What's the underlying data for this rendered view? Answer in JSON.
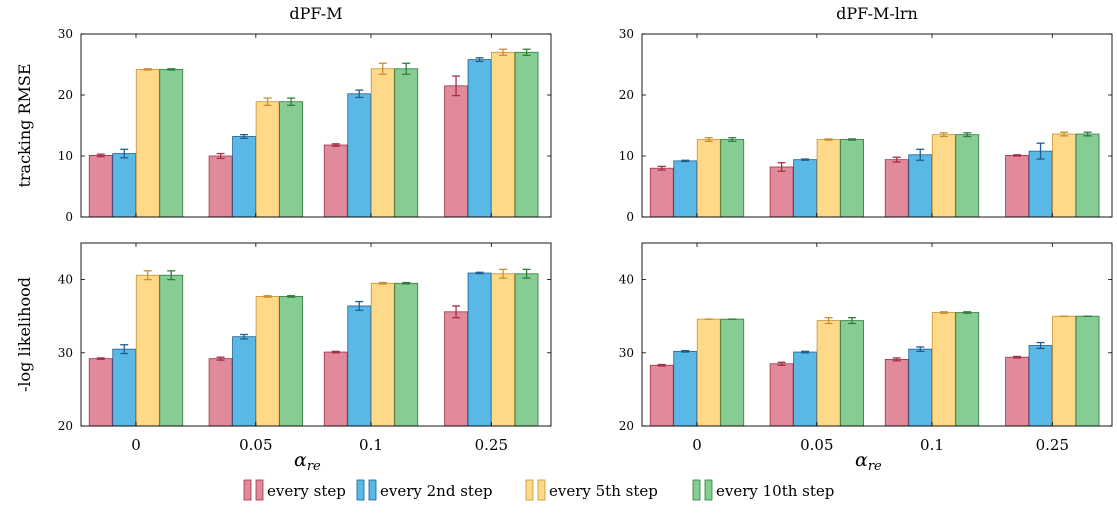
{
  "legend": [
    {
      "label": "every step",
      "fill": "#e08a9b",
      "stroke": "#a63046"
    },
    {
      "label": "every 2nd step",
      "fill": "#5ab8e6",
      "stroke": "#1f5f8f"
    },
    {
      "label": "every 5th step",
      "fill": "#ffd98a",
      "stroke": "#c7902f"
    },
    {
      "label": "every 10th step",
      "fill": "#86cc93",
      "stroke": "#2f7d3f"
    }
  ],
  "columns": [
    {
      "title": "dPF-M"
    },
    {
      "title": "dPF-M-lrn"
    }
  ],
  "x_axis_label": "α",
  "x_axis_label_sub": "re",
  "chart_data": [
    {
      "type": "bar",
      "panel": "top-left",
      "column": 0,
      "row": 0,
      "title": "dPF-M",
      "ylabel": "tracking RMSE",
      "xlabel": "",
      "categories": [
        "0",
        "0.05",
        "0.1",
        "0.25"
      ],
      "ylim": [
        0,
        30
      ],
      "yticks": [
        0,
        10,
        20,
        30
      ],
      "grid": false,
      "series": [
        {
          "name": "every step",
          "values": [
            10.1,
            10.0,
            11.8,
            21.5
          ],
          "err": [
            0.2,
            0.4,
            0.2,
            1.6
          ]
        },
        {
          "name": "every 2nd step",
          "values": [
            10.4,
            13.2,
            20.2,
            25.8
          ],
          "err": [
            0.7,
            0.3,
            0.6,
            0.3
          ]
        },
        {
          "name": "every 5th step",
          "values": [
            24.2,
            18.9,
            24.3,
            27.0
          ],
          "err": [
            0.1,
            0.6,
            0.9,
            0.5
          ]
        },
        {
          "name": "every 10th step",
          "values": [
            24.2,
            18.9,
            24.3,
            27.0
          ],
          "err": [
            0.1,
            0.6,
            0.9,
            0.5
          ]
        }
      ]
    },
    {
      "type": "bar",
      "panel": "top-right",
      "column": 1,
      "row": 0,
      "title": "dPF-M-lrn",
      "ylabel": "",
      "xlabel": "",
      "categories": [
        "0",
        "0.05",
        "0.1",
        "0.25"
      ],
      "ylim": [
        0,
        30
      ],
      "yticks": [
        0,
        10,
        20,
        30
      ],
      "grid": false,
      "series": [
        {
          "name": "every step",
          "values": [
            8.0,
            8.2,
            9.4,
            10.1
          ],
          "err": [
            0.3,
            0.7,
            0.4,
            0.1
          ]
        },
        {
          "name": "every 2nd step",
          "values": [
            9.2,
            9.4,
            10.2,
            10.8
          ],
          "err": [
            0.1,
            0.1,
            0.9,
            1.3
          ]
        },
        {
          "name": "every 5th step",
          "values": [
            12.7,
            12.7,
            13.5,
            13.6
          ],
          "err": [
            0.3,
            0.1,
            0.3,
            0.3
          ]
        },
        {
          "name": "every 10th step",
          "values": [
            12.7,
            12.7,
            13.5,
            13.6
          ],
          "err": [
            0.3,
            0.1,
            0.3,
            0.3
          ]
        }
      ]
    },
    {
      "type": "bar",
      "panel": "bottom-left",
      "column": 0,
      "row": 1,
      "title": "",
      "ylabel": "-log likelihood",
      "xlabel": "αre",
      "categories": [
        "0",
        "0.05",
        "0.1",
        "0.25"
      ],
      "ylim": [
        20,
        45
      ],
      "yticks": [
        20,
        30,
        40
      ],
      "grid": false,
      "series": [
        {
          "name": "every step",
          "values": [
            29.2,
            29.2,
            30.1,
            35.6
          ],
          "err": [
            0.1,
            0.2,
            0.1,
            0.8
          ]
        },
        {
          "name": "every 2nd step",
          "values": [
            30.5,
            32.2,
            36.4,
            40.9
          ],
          "err": [
            0.6,
            0.3,
            0.6,
            0.1
          ]
        },
        {
          "name": "every 5th step",
          "values": [
            40.6,
            37.7,
            39.5,
            40.8
          ],
          "err": [
            0.6,
            0.1,
            0.1,
            0.6
          ]
        },
        {
          "name": "every 10th step",
          "values": [
            40.6,
            37.7,
            39.5,
            40.8
          ],
          "err": [
            0.6,
            0.1,
            0.1,
            0.6
          ]
        }
      ]
    },
    {
      "type": "bar",
      "panel": "bottom-right",
      "column": 1,
      "row": 1,
      "title": "",
      "ylabel": "",
      "xlabel": "αre",
      "categories": [
        "0",
        "0.05",
        "0.1",
        "0.25"
      ],
      "ylim": [
        20,
        45
      ],
      "yticks": [
        20,
        30,
        40
      ],
      "grid": false,
      "series": [
        {
          "name": "every step",
          "values": [
            28.3,
            28.5,
            29.1,
            29.4
          ],
          "err": [
            0.1,
            0.2,
            0.2,
            0.1
          ]
        },
        {
          "name": "every 2nd step",
          "values": [
            30.2,
            30.1,
            30.5,
            31.0
          ],
          "err": [
            0.1,
            0.1,
            0.3,
            0.4
          ]
        },
        {
          "name": "every 5th step",
          "values": [
            34.6,
            34.4,
            35.5,
            35.0
          ],
          "err": [
            0.0,
            0.4,
            0.1,
            0.0
          ]
        },
        {
          "name": "every 10th step",
          "values": [
            34.6,
            34.4,
            35.5,
            35.0
          ],
          "err": [
            0.0,
            0.4,
            0.1,
            0.0
          ]
        }
      ]
    }
  ]
}
